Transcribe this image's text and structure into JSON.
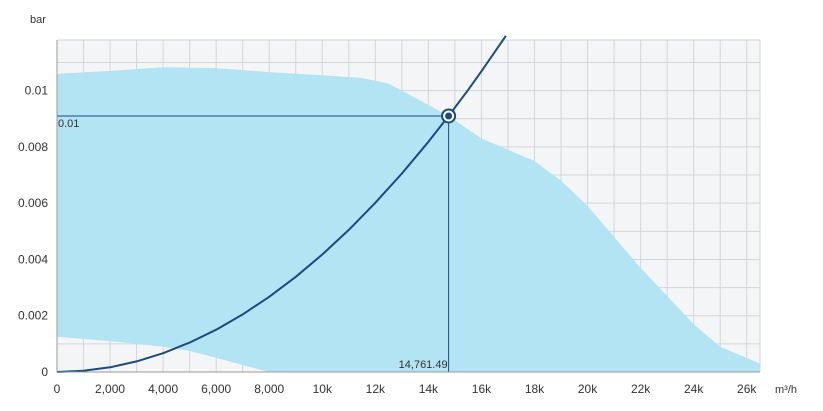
{
  "chart_data": {
    "type": "area",
    "title": "",
    "xlabel": "m³/h",
    "ylabel": "bar",
    "xlim": [
      0,
      26500
    ],
    "ylim": [
      0,
      0.0118
    ],
    "grid": true,
    "x_ticks": [
      0,
      2000,
      4000,
      6000,
      8000,
      10000,
      12000,
      14000,
      16000,
      18000,
      20000,
      22000,
      24000,
      26000
    ],
    "x_tick_labels": [
      "0",
      "2,000",
      "4,000",
      "6,000",
      "8,000",
      "10k",
      "12k",
      "14k",
      "16k",
      "18k",
      "20k",
      "22k",
      "24k",
      "26k"
    ],
    "y_ticks": [
      0,
      0.002,
      0.004,
      0.006,
      0.008,
      0.01
    ],
    "y_tick_labels": [
      "0",
      "0.002",
      "0.004",
      "0.006",
      "0.008",
      "0.01"
    ],
    "series": [
      {
        "kind": "range_area",
        "color": "#b3e4f3",
        "upper": [
          [
            0,
            0.0106
          ],
          [
            2000,
            0.0107
          ],
          [
            4000,
            0.01083
          ],
          [
            6000,
            0.0108
          ],
          [
            8000,
            0.01066
          ],
          [
            10000,
            0.01055
          ],
          [
            11500,
            0.01045
          ],
          [
            12500,
            0.01025
          ],
          [
            13500,
            0.00975
          ],
          [
            14761.49,
            0.0091
          ],
          [
            16000,
            0.0083
          ],
          [
            17000,
            0.0079
          ],
          [
            18000,
            0.0075
          ],
          [
            19000,
            0.0068
          ],
          [
            20000,
            0.0059
          ],
          [
            21000,
            0.0048
          ],
          [
            22000,
            0.0037
          ],
          [
            23000,
            0.0027
          ],
          [
            24000,
            0.0017
          ],
          [
            25000,
            0.0009
          ],
          [
            26500,
            0.0003
          ]
        ],
        "lower": [
          [
            0,
            0.00125
          ],
          [
            2000,
            0.0011
          ],
          [
            4000,
            0.0009
          ],
          [
            5000,
            0.00075
          ],
          [
            6000,
            0.0005
          ],
          [
            7000,
            0.00025
          ],
          [
            8000,
            0.0
          ],
          [
            26500,
            0.0
          ]
        ]
      },
      {
        "kind": "system_curve",
        "color": "#1b4a82",
        "x": [
          0,
          1000,
          2000,
          3000,
          4000,
          5000,
          6000,
          7000,
          8000,
          9000,
          10000,
          11000,
          12000,
          13000,
          14000,
          14761.49,
          15500,
          16000,
          16500,
          16920
        ],
        "y": [
          0,
          4.2e-05,
          0.000167,
          0.000376,
          0.000668,
          0.001044,
          0.001503,
          0.002046,
          0.002672,
          0.003382,
          0.004175,
          0.005052,
          0.006012,
          0.007056,
          0.008183,
          0.0091,
          0.01003,
          0.01069,
          0.01137,
          0.01195
        ]
      }
    ],
    "operating_point": {
      "x": 14761.49,
      "y": 0.0091,
      "x_label": "14,761.49",
      "y_label": "0.01",
      "color": "#1b4a82"
    },
    "colors": {
      "plot_background": "#f4f5f7",
      "grid": "#d4d6da",
      "axis": "#9a9a9a"
    }
  }
}
